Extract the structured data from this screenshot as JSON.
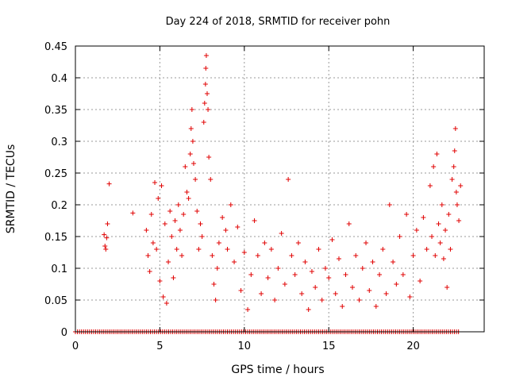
{
  "chart_data": {
    "type": "scatter",
    "title": "Day 224 of 2018, SRMTID for receiver pohn",
    "xlabel": "GPS time / hours",
    "ylabel": "SRMTID / TECUs",
    "xlim": [
      0,
      24.2
    ],
    "ylim": [
      0,
      0.45
    ],
    "xticks": [
      0,
      5,
      10,
      15,
      20
    ],
    "xtick_labels": [
      "0",
      "5",
      "10",
      "15",
      "20"
    ],
    "yticks": [
      0,
      0.05,
      0.1,
      0.15,
      0.2,
      0.25,
      0.3,
      0.35,
      0.4,
      0.45
    ],
    "ytick_labels": [
      "0",
      "0.05",
      "0.1",
      "0.15",
      "0.2",
      "0.25",
      "0.3",
      "0.35",
      "0.4",
      "0.45"
    ],
    "grid": true,
    "marker": "+",
    "series": [
      {
        "name": "SRMTID",
        "color": "#e00000",
        "points": [
          [
            1.7,
            0.153
          ],
          [
            1.75,
            0.135
          ],
          [
            1.8,
            0.13
          ],
          [
            1.85,
            0.148
          ],
          [
            1.9,
            0.17
          ],
          [
            2.0,
            0.233
          ],
          [
            3.4,
            0.187
          ],
          [
            4.2,
            0.16
          ],
          [
            4.3,
            0.12
          ],
          [
            4.4,
            0.095
          ],
          [
            4.5,
            0.185
          ],
          [
            4.6,
            0.14
          ],
          [
            4.7,
            0.235
          ],
          [
            4.8,
            0.13
          ],
          [
            4.9,
            0.21
          ],
          [
            5.0,
            0.08
          ],
          [
            5.1,
            0.23
          ],
          [
            5.2,
            0.055
          ],
          [
            5.3,
            0.17
          ],
          [
            5.4,
            0.045
          ],
          [
            5.5,
            0.11
          ],
          [
            5.6,
            0.19
          ],
          [
            5.7,
            0.15
          ],
          [
            5.8,
            0.085
          ],
          [
            5.9,
            0.175
          ],
          [
            6.0,
            0.13
          ],
          [
            6.1,
            0.2
          ],
          [
            6.2,
            0.16
          ],
          [
            6.3,
            0.12
          ],
          [
            6.4,
            0.185
          ],
          [
            6.5,
            0.26
          ],
          [
            6.6,
            0.22
          ],
          [
            6.7,
            0.21
          ],
          [
            6.8,
            0.28
          ],
          [
            6.85,
            0.32
          ],
          [
            6.9,
            0.35
          ],
          [
            6.95,
            0.3
          ],
          [
            7.0,
            0.265
          ],
          [
            7.1,
            0.24
          ],
          [
            7.2,
            0.19
          ],
          [
            7.3,
            0.13
          ],
          [
            7.4,
            0.17
          ],
          [
            7.5,
            0.15
          ],
          [
            7.6,
            0.33
          ],
          [
            7.65,
            0.36
          ],
          [
            7.7,
            0.39
          ],
          [
            7.72,
            0.415
          ],
          [
            7.75,
            0.435
          ],
          [
            7.8,
            0.375
          ],
          [
            7.85,
            0.35
          ],
          [
            7.9,
            0.275
          ],
          [
            8.0,
            0.24
          ],
          [
            8.1,
            0.12
          ],
          [
            8.2,
            0.075
          ],
          [
            8.3,
            0.05
          ],
          [
            8.4,
            0.1
          ],
          [
            8.5,
            0.14
          ],
          [
            8.7,
            0.18
          ],
          [
            8.9,
            0.16
          ],
          [
            9.0,
            0.13
          ],
          [
            9.2,
            0.2
          ],
          [
            9.4,
            0.11
          ],
          [
            9.6,
            0.165
          ],
          [
            9.8,
            0.065
          ],
          [
            10.0,
            0.125
          ],
          [
            10.2,
            0.035
          ],
          [
            10.4,
            0.09
          ],
          [
            10.6,
            0.175
          ],
          [
            10.8,
            0.12
          ],
          [
            11.0,
            0.06
          ],
          [
            11.2,
            0.14
          ],
          [
            11.4,
            0.085
          ],
          [
            11.6,
            0.13
          ],
          [
            11.8,
            0.05
          ],
          [
            12.0,
            0.1
          ],
          [
            12.2,
            0.155
          ],
          [
            12.4,
            0.075
          ],
          [
            12.6,
            0.24
          ],
          [
            12.8,
            0.12
          ],
          [
            13.0,
            0.09
          ],
          [
            13.2,
            0.14
          ],
          [
            13.4,
            0.06
          ],
          [
            13.6,
            0.11
          ],
          [
            13.8,
            0.035
          ],
          [
            14.0,
            0.095
          ],
          [
            14.2,
            0.07
          ],
          [
            14.4,
            0.13
          ],
          [
            14.6,
            0.05
          ],
          [
            14.8,
            0.1
          ],
          [
            15.0,
            0.085
          ],
          [
            15.2,
            0.145
          ],
          [
            15.4,
            0.06
          ],
          [
            15.6,
            0.115
          ],
          [
            15.8,
            0.04
          ],
          [
            16.0,
            0.09
          ],
          [
            16.2,
            0.17
          ],
          [
            16.4,
            0.07
          ],
          [
            16.6,
            0.12
          ],
          [
            16.8,
            0.05
          ],
          [
            17.0,
            0.1
          ],
          [
            17.2,
            0.14
          ],
          [
            17.4,
            0.065
          ],
          [
            17.6,
            0.11
          ],
          [
            17.8,
            0.04
          ],
          [
            18.0,
            0.09
          ],
          [
            18.2,
            0.13
          ],
          [
            18.4,
            0.06
          ],
          [
            18.6,
            0.2
          ],
          [
            18.8,
            0.11
          ],
          [
            19.0,
            0.075
          ],
          [
            19.2,
            0.15
          ],
          [
            19.4,
            0.09
          ],
          [
            19.6,
            0.185
          ],
          [
            19.8,
            0.055
          ],
          [
            20.0,
            0.12
          ],
          [
            20.2,
            0.16
          ],
          [
            20.4,
            0.08
          ],
          [
            20.6,
            0.18
          ],
          [
            20.8,
            0.13
          ],
          [
            21.0,
            0.23
          ],
          [
            21.1,
            0.15
          ],
          [
            21.2,
            0.26
          ],
          [
            21.3,
            0.12
          ],
          [
            21.4,
            0.28
          ],
          [
            21.5,
            0.17
          ],
          [
            21.6,
            0.14
          ],
          [
            21.7,
            0.2
          ],
          [
            21.8,
            0.115
          ],
          [
            21.9,
            0.16
          ],
          [
            22.0,
            0.07
          ],
          [
            22.1,
            0.185
          ],
          [
            22.2,
            0.13
          ],
          [
            22.3,
            0.24
          ],
          [
            22.4,
            0.26
          ],
          [
            22.45,
            0.285
          ],
          [
            22.5,
            0.32
          ],
          [
            22.55,
            0.22
          ],
          [
            22.6,
            0.2
          ],
          [
            22.7,
            0.175
          ],
          [
            22.8,
            0.23
          ]
        ]
      }
    ]
  }
}
